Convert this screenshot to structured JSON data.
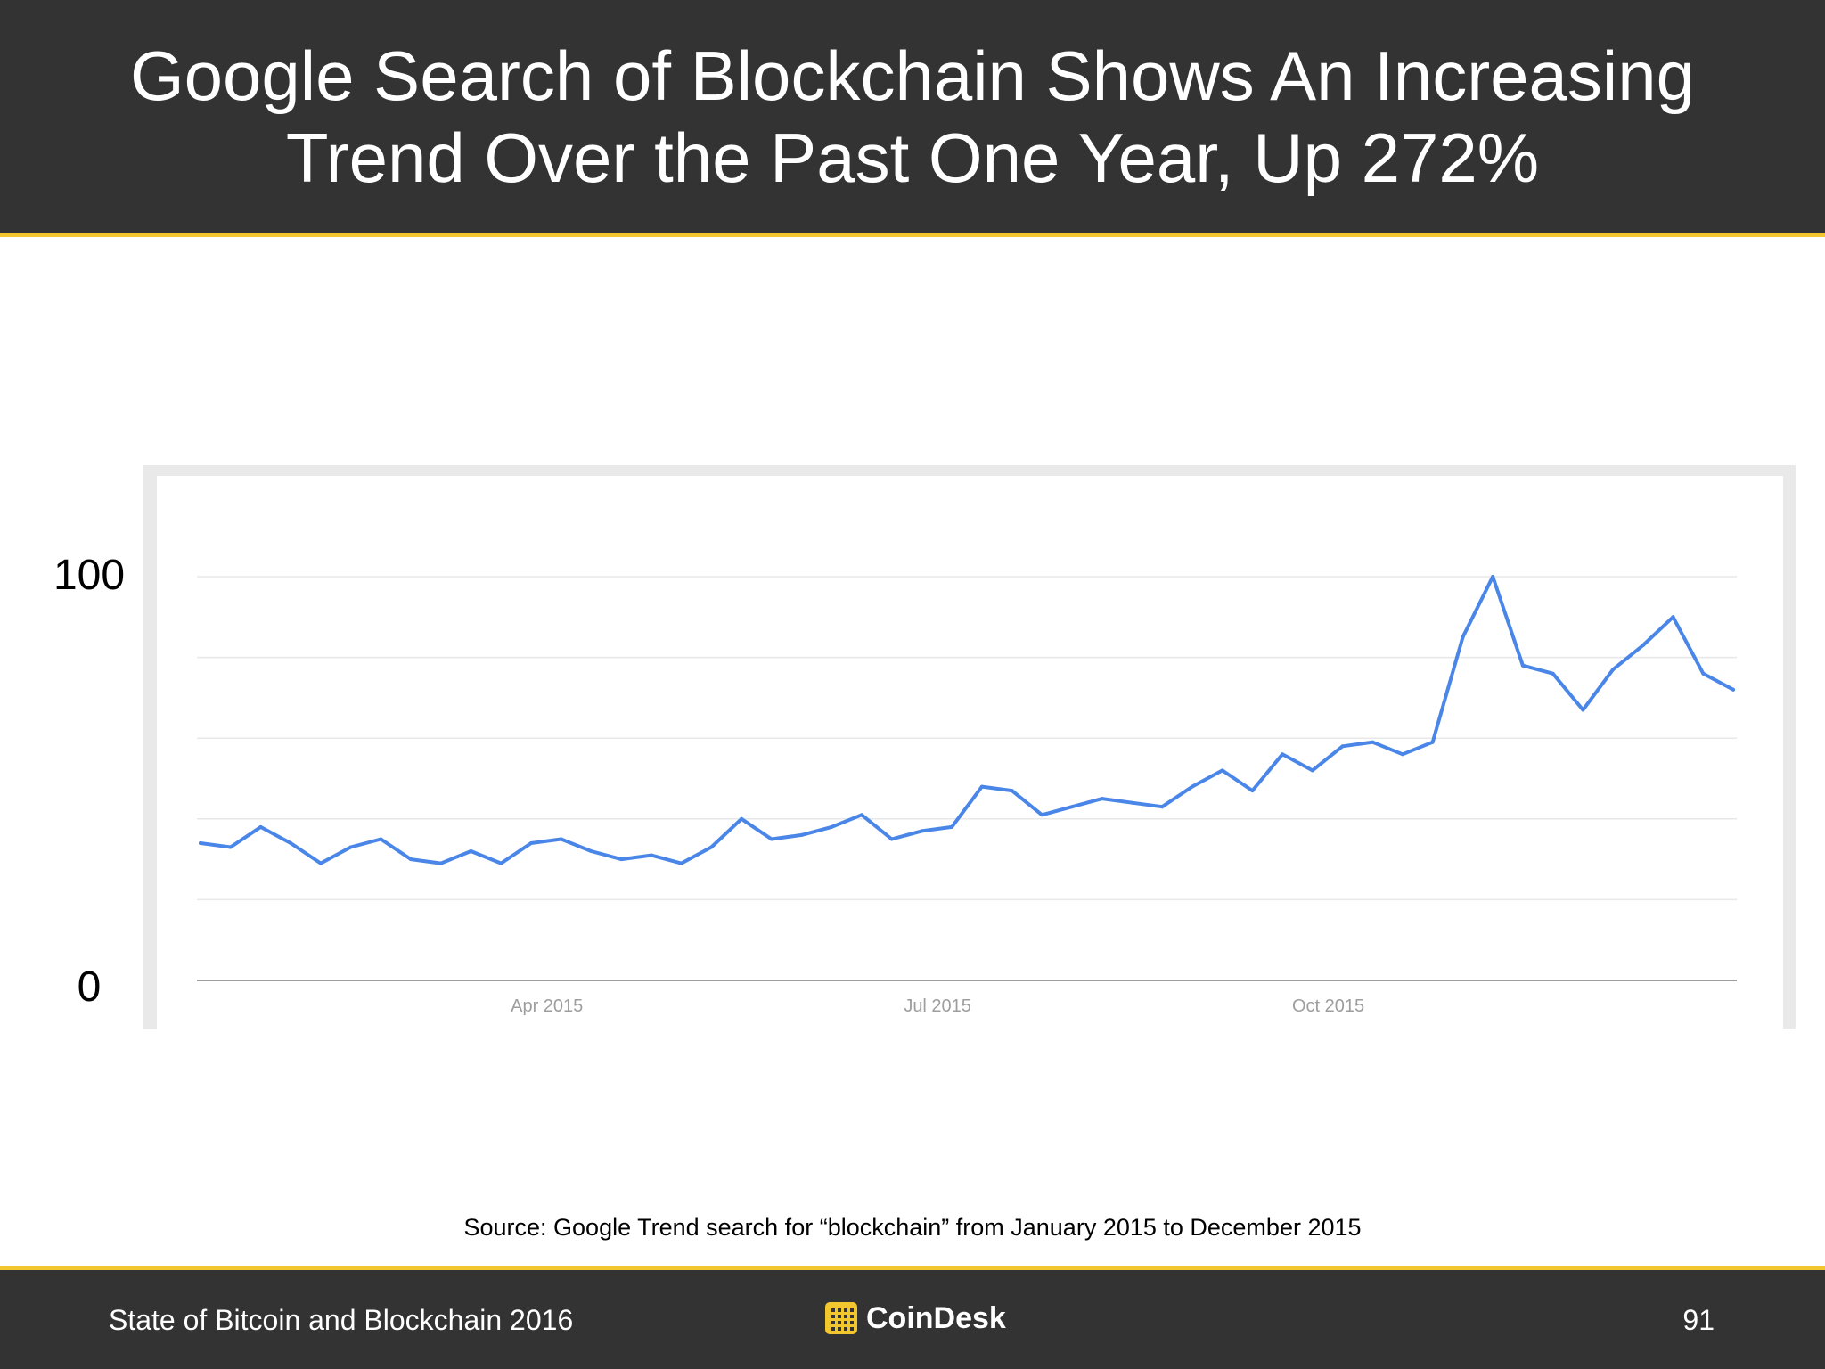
{
  "header": {
    "title": "Google Search of Blockchain Shows An Increasing Trend Over the Past One Year, Up 272%"
  },
  "chart_data": {
    "type": "line",
    "title": "",
    "xlabel": "",
    "ylabel": "",
    "ylim": [
      0,
      100
    ],
    "y_tick_labels": [
      "0",
      "100"
    ],
    "x_tick_labels": [
      "Apr 2015",
      "Jul 2015",
      "Oct 2015"
    ],
    "gridlines": true,
    "series_color": "#4a86e8",
    "series": [
      {
        "values": [
          34,
          33,
          38,
          34,
          29,
          33,
          35,
          30,
          29,
          32,
          29,
          34,
          35,
          32,
          30,
          31,
          29,
          33,
          40,
          35,
          36,
          38,
          41,
          35,
          37,
          38,
          48,
          47,
          41,
          43,
          45,
          44,
          43,
          48,
          52,
          47,
          56,
          52,
          58,
          59,
          56,
          59,
          85,
          100,
          78,
          76,
          67,
          77,
          83,
          90,
          76,
          72
        ]
      }
    ]
  },
  "source": {
    "text": "Source: Google Trend search for “blockchain” from January 2015 to December 2015"
  },
  "footer": {
    "left_text": "State of Bitcoin and Blockchain 2016",
    "logo_text": "CoinDesk",
    "page_number": "91"
  },
  "colors": {
    "header_bg": "#333333",
    "accent": "#f2c62f",
    "line": "#4a86e8"
  }
}
